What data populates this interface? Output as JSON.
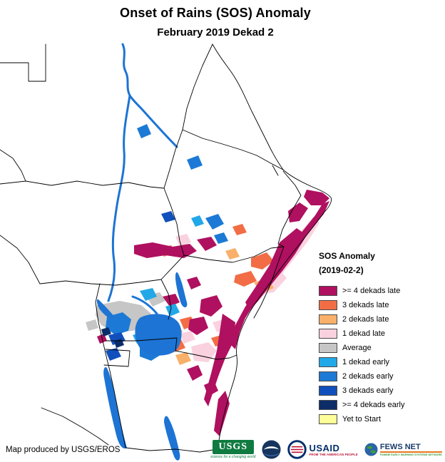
{
  "header": {
    "title": "Onset of Rains (SOS) Anomaly",
    "subtitle": "February 2019 Dekad 2"
  },
  "legend": {
    "title": "SOS Anomaly",
    "date": "(2019-02-2)",
    "items": [
      {
        "key": "late4",
        "label": ">= 4 dekads late",
        "color": "#b01060"
      },
      {
        "key": "late3",
        "label": "3 dekads late",
        "color": "#f26d45"
      },
      {
        "key": "late2",
        "label": "2 dekads late",
        "color": "#f8b06a"
      },
      {
        "key": "late1",
        "label": "1 dekad late",
        "color": "#fad2df"
      },
      {
        "key": "avg",
        "label": "Average",
        "color": "#c6c6c6"
      },
      {
        "key": "early1",
        "label": "1 dekad early",
        "color": "#22a8e8"
      },
      {
        "key": "early2",
        "label": "2 dekads early",
        "color": "#1c7ad6"
      },
      {
        "key": "early3",
        "label": "3 dekads early",
        "color": "#1150bc"
      },
      {
        "key": "early4",
        "label": ">= 4 dekads early",
        "color": "#0c2d68"
      },
      {
        "key": "yet",
        "label": "Yet to Start",
        "color": "#ffff99"
      }
    ]
  },
  "map": {
    "region": "East Africa / Horn of Africa",
    "water_color": "#1d74d4",
    "border_color": "#000000"
  },
  "footer": {
    "credit": "Map produced by USGS/EROS",
    "logos": [
      {
        "name": "USGS",
        "tagline": "science for a changing world"
      },
      {
        "name": "NOAA",
        "tagline": ""
      },
      {
        "name": "USAID",
        "tagline": "FROM THE AMERICAN PEOPLE"
      },
      {
        "name": "FEWS NET",
        "tagline": "FAMINE EARLY WARNING SYSTEMS NETWORK"
      }
    ]
  }
}
